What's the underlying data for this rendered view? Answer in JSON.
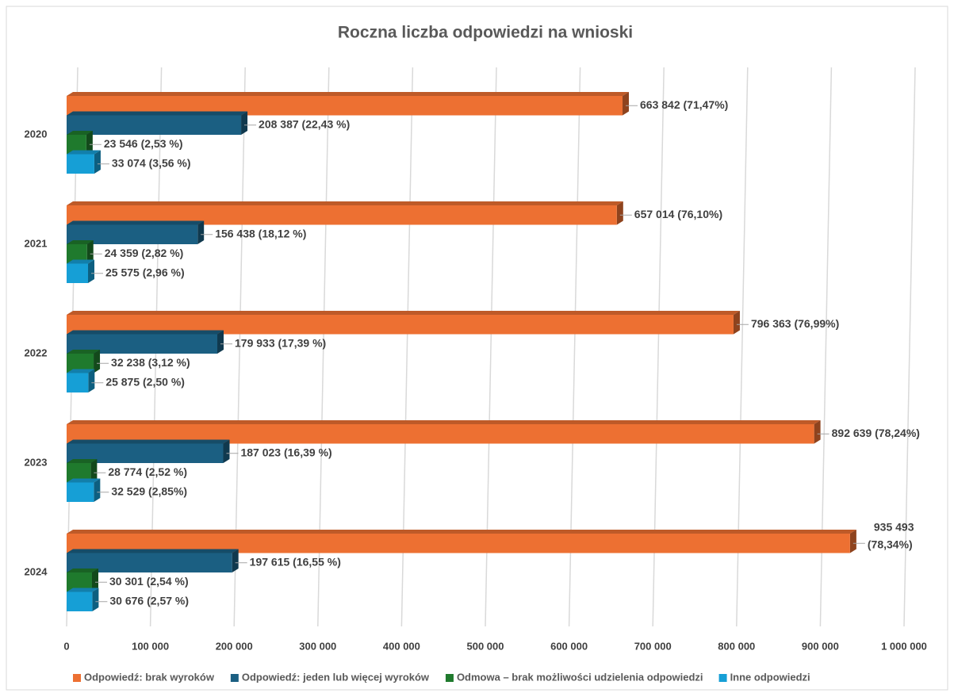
{
  "chart_data": {
    "type": "bar",
    "orientation": "horizontal",
    "title": "Roczna liczba odpowiedzi na wnioski",
    "categories": [
      "2020",
      "2021",
      "2022",
      "2023",
      "2024"
    ],
    "series": [
      {
        "name": "Odpowiedź: brak wyroków",
        "color": "#ed7032",
        "values": [
          663842,
          657014,
          796363,
          892639,
          935493
        ],
        "value_labels": [
          "663 842 (71,47%)",
          "657 014 (76,10%)",
          "796 363 (76,99%)",
          "892 639 (78,24%)",
          "935 493 (78,34%)"
        ]
      },
      {
        "name": "Odpowiedź: jeden lub więcej wyroków",
        "color": "#1b5f82",
        "values": [
          208387,
          156438,
          179933,
          187023,
          197615
        ],
        "value_labels": [
          "208 387 (22,43 %)",
          "156 438 (18,12 %)",
          "179 933 (17,39 %)",
          "187 023 (16,39 %)",
          "197 615 (16,55 %)"
        ]
      },
      {
        "name": "Odmowa – brak możliwości udzielenia odpowiedzi",
        "color": "#1f7a2d",
        "values": [
          23546,
          24359,
          32238,
          28774,
          30301
        ],
        "value_labels": [
          "23 546 (2,53 %)",
          "24 359 (2,82 %)",
          "32 238 (3,12 %)",
          "28 774 (2,52 %)",
          "30 301 (2,54 %)"
        ]
      },
      {
        "name": "Inne odpowiedzi",
        "color": "#169fd6",
        "values": [
          33074,
          25575,
          25875,
          32529,
          30676
        ],
        "value_labels": [
          "33 074 (3,56 %)",
          "25 575 (2,96 %)",
          "25 875 (2,50 %)",
          "32 529 (2,85%)",
          "30 676 (2,57 %)"
        ]
      }
    ],
    "xlim": [
      0,
      1000000
    ],
    "xticks": [
      0,
      {
        "value": 100000,
        "label": "100 000"
      },
      {
        "value": 200000,
        "label": "200 000"
      },
      {
        "value": 300000,
        "label": "300 000"
      },
      {
        "value": 400000,
        "label": "400 000"
      },
      {
        "value": 500000,
        "label": "500 000"
      },
      {
        "value": 600000,
        "label": "600 000"
      },
      {
        "value": 700000,
        "label": "700 000"
      },
      {
        "value": 800000,
        "label": "800 000"
      },
      {
        "value": 900000,
        "label": "900 000"
      },
      {
        "value": 1000000,
        "label": "1 000 000"
      }
    ],
    "grid": true,
    "legend": "bottom"
  }
}
